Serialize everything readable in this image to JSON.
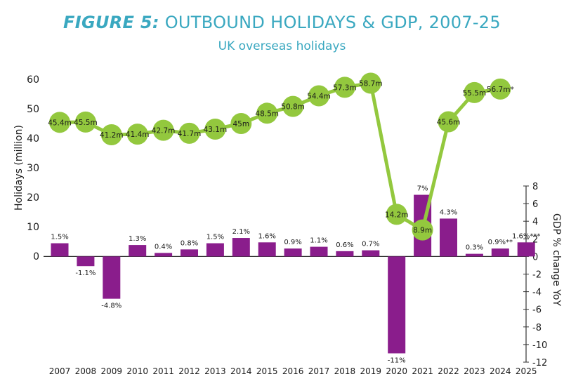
{
  "title_prefix": "FIGURE 5:",
  "title_main": "OUTBOUND HOLIDAYS & GDP, 2007-25",
  "subtitle": "UK overseas holidays",
  "colors": {
    "title": "#3aa8c0",
    "line": "#93c83e",
    "bar": "#8a1d8c",
    "text": "#1a1a1a"
  },
  "chart_data": {
    "type": "bar+line",
    "title": "FIGURE 5: OUTBOUND HOLIDAYS & GDP, 2007-25",
    "subtitle": "UK overseas holidays",
    "categories": [
      "2007",
      "2008",
      "2009",
      "2010",
      "2011",
      "2012",
      "2013",
      "2014",
      "2015",
      "2016",
      "2017",
      "2018",
      "2019",
      "2020",
      "2021",
      "2022",
      "2023",
      "2024",
      "2025"
    ],
    "left_axis": {
      "label": "Holidays (million)",
      "range": [
        0,
        60
      ],
      "ticks": [
        0,
        10,
        20,
        30,
        40,
        50,
        60
      ]
    },
    "right_axis": {
      "label": "GDP % change YoY",
      "range": [
        -12,
        8
      ],
      "ticks": [
        8,
        6,
        4,
        2,
        0,
        -2,
        -4,
        -6,
        -8,
        -10,
        -12
      ]
    },
    "series": [
      {
        "name": "Holidays (million)",
        "type": "line",
        "axis": "left",
        "values": [
          45.4,
          45.5,
          41.2,
          41.4,
          42.7,
          41.7,
          43.1,
          45,
          48.5,
          50.8,
          54.4,
          57.3,
          58.7,
          14.2,
          8.9,
          45.6,
          55.5,
          56.7,
          null
        ],
        "labels": [
          "45.4m",
          "45.5m",
          "41.2m",
          "41.4m",
          "42.7m",
          "41.7m",
          "43.1m",
          "45m",
          "48.5m",
          "50.8m",
          "54.4m",
          "57.3m",
          "58.7m",
          "14.2m",
          "8.9m",
          "45.6m",
          "55.5m",
          "56.7m*",
          null
        ]
      },
      {
        "name": "GDP % change YoY",
        "type": "bar",
        "axis": "right",
        "values": [
          1.5,
          -1.1,
          -4.8,
          1.3,
          0.4,
          0.8,
          1.5,
          2.1,
          1.6,
          0.9,
          1.1,
          0.6,
          0.7,
          -11,
          7,
          4.3,
          0.3,
          0.9,
          1.6
        ],
        "labels": [
          "1.5%",
          "-1.1%",
          "-4.8%",
          "1.3%",
          "0.4%",
          "0.8%",
          "1.5%",
          "2.1%",
          "1.6%",
          "0.9%",
          "1.1%",
          "0.6%",
          "0.7%",
          "-11%",
          "7%",
          "4.3%",
          "0.3%",
          "0.9%**",
          "1.6%***"
        ]
      }
    ]
  }
}
